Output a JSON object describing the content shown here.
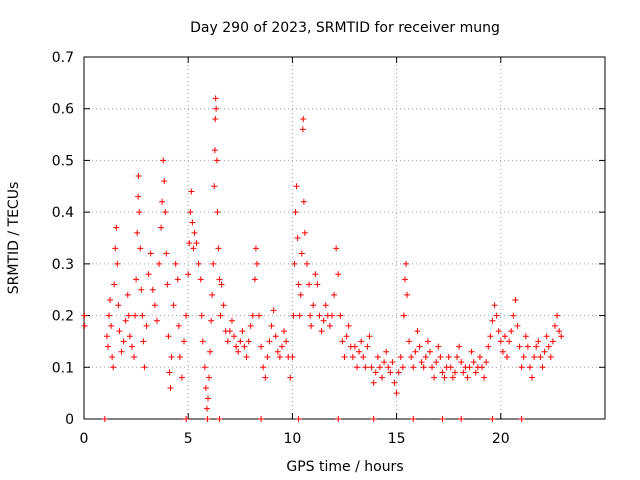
{
  "chart_data": {
    "type": "scatter",
    "title": "Day 290 of 2023, SRMTID for receiver mung",
    "xlabel": "GPS time / hours",
    "ylabel": "SRMTID / TECUs",
    "xlim": [
      0,
      25
    ],
    "ylim": [
      0,
      0.7
    ],
    "xticks": [
      0,
      5,
      10,
      15,
      20
    ],
    "yticks": [
      0,
      0.1,
      0.2,
      0.3,
      0.4,
      0.5,
      0.6,
      0.7
    ],
    "xtick_labels": [
      "0",
      "5",
      "10",
      "15",
      "20"
    ],
    "ytick_labels": [
      "0",
      "0.1",
      "0.2",
      "0.3",
      "0.4",
      "0.5",
      "0.6",
      "0.7"
    ],
    "grid": true,
    "marker": "+",
    "color": "#ff0000",
    "series": [
      {
        "name": "SRMTID",
        "points": [
          [
            0.02,
            0.2
          ],
          [
            0.03,
            0.18
          ],
          [
            1.0,
            0.0
          ],
          [
            1.1,
            0.16
          ],
          [
            1.15,
            0.14
          ],
          [
            1.2,
            0.2
          ],
          [
            1.25,
            0.23
          ],
          [
            1.3,
            0.18
          ],
          [
            1.35,
            0.12
          ],
          [
            1.4,
            0.1
          ],
          [
            1.45,
            0.26
          ],
          [
            1.5,
            0.33
          ],
          [
            1.55,
            0.37
          ],
          [
            1.6,
            0.3
          ],
          [
            1.65,
            0.22
          ],
          [
            1.7,
            0.17
          ],
          [
            1.8,
            0.13
          ],
          [
            1.9,
            0.15
          ],
          [
            2.0,
            0.19
          ],
          [
            2.1,
            0.24
          ],
          [
            2.15,
            0.2
          ],
          [
            2.2,
            0.16
          ],
          [
            2.3,
            0.14
          ],
          [
            2.4,
            0.12
          ],
          [
            2.45,
            0.2
          ],
          [
            2.5,
            0.27
          ],
          [
            2.55,
            0.36
          ],
          [
            2.6,
            0.43
          ],
          [
            2.62,
            0.47
          ],
          [
            2.65,
            0.4
          ],
          [
            2.7,
            0.33
          ],
          [
            2.75,
            0.25
          ],
          [
            2.8,
            0.2
          ],
          [
            2.85,
            0.15
          ],
          [
            2.9,
            0.1
          ],
          [
            3.0,
            0.18
          ],
          [
            3.1,
            0.28
          ],
          [
            3.2,
            0.32
          ],
          [
            3.3,
            0.25
          ],
          [
            3.4,
            0.22
          ],
          [
            3.5,
            0.19
          ],
          [
            3.6,
            0.3
          ],
          [
            3.7,
            0.37
          ],
          [
            3.75,
            0.42
          ],
          [
            3.8,
            0.5
          ],
          [
            3.85,
            0.46
          ],
          [
            3.9,
            0.4
          ],
          [
            3.95,
            0.32
          ],
          [
            4.0,
            0.26
          ],
          [
            4.05,
            0.16
          ],
          [
            4.1,
            0.09
          ],
          [
            4.15,
            0.06
          ],
          [
            4.2,
            0.12
          ],
          [
            4.3,
            0.22
          ],
          [
            4.4,
            0.3
          ],
          [
            4.5,
            0.27
          ],
          [
            4.55,
            0.18
          ],
          [
            4.6,
            0.12
          ],
          [
            4.7,
            0.08
          ],
          [
            4.8,
            0.15
          ],
          [
            4.9,
            0.2
          ],
          [
            5.0,
            0.28
          ],
          [
            5.05,
            0.34
          ],
          [
            5.1,
            0.4
          ],
          [
            5.15,
            0.44
          ],
          [
            5.2,
            0.38
          ],
          [
            5.25,
            0.33
          ],
          [
            5.3,
            0.36
          ],
          [
            5.4,
            0.34
          ],
          [
            5.5,
            0.3
          ],
          [
            5.6,
            0.27
          ],
          [
            5.65,
            0.2
          ],
          [
            5.7,
            0.15
          ],
          [
            5.8,
            0.1
          ],
          [
            5.85,
            0.06
          ],
          [
            5.9,
            0.02
          ],
          [
            5.92,
            0.0
          ],
          [
            5.95,
            0.04
          ],
          [
            6.0,
            0.08
          ],
          [
            6.05,
            0.13
          ],
          [
            6.1,
            0.19
          ],
          [
            6.15,
            0.24
          ],
          [
            6.2,
            0.3
          ],
          [
            6.25,
            0.45
          ],
          [
            6.28,
            0.52
          ],
          [
            6.3,
            0.58
          ],
          [
            6.32,
            0.62
          ],
          [
            6.34,
            0.6
          ],
          [
            6.38,
            0.5
          ],
          [
            6.4,
            0.4
          ],
          [
            6.45,
            0.33
          ],
          [
            6.5,
            0.27
          ],
          [
            6.55,
            0.2
          ],
          [
            6.6,
            0.26
          ],
          [
            6.7,
            0.22
          ],
          [
            6.8,
            0.17
          ],
          [
            6.9,
            0.15
          ],
          [
            7.0,
            0.17
          ],
          [
            7.1,
            0.19
          ],
          [
            7.2,
            0.16
          ],
          [
            7.3,
            0.14
          ],
          [
            7.4,
            0.13
          ],
          [
            7.5,
            0.15
          ],
          [
            7.6,
            0.17
          ],
          [
            7.7,
            0.14
          ],
          [
            7.8,
            0.12
          ],
          [
            7.9,
            0.15
          ],
          [
            8.0,
            0.18
          ],
          [
            8.1,
            0.2
          ],
          [
            8.2,
            0.27
          ],
          [
            8.25,
            0.33
          ],
          [
            8.3,
            0.3
          ],
          [
            8.4,
            0.2
          ],
          [
            8.5,
            0.14
          ],
          [
            8.6,
            0.1
          ],
          [
            8.7,
            0.08
          ],
          [
            8.8,
            0.12
          ],
          [
            8.9,
            0.15
          ],
          [
            9.0,
            0.18
          ],
          [
            9.1,
            0.21
          ],
          [
            9.2,
            0.16
          ],
          [
            9.3,
            0.13
          ],
          [
            9.4,
            0.12
          ],
          [
            9.5,
            0.14
          ],
          [
            9.6,
            0.17
          ],
          [
            9.7,
            0.15
          ],
          [
            9.8,
            0.12
          ],
          [
            9.9,
            0.08
          ],
          [
            10.0,
            0.12
          ],
          [
            10.05,
            0.2
          ],
          [
            10.1,
            0.3
          ],
          [
            10.15,
            0.4
          ],
          [
            10.2,
            0.45
          ],
          [
            10.25,
            0.35
          ],
          [
            10.3,
            0.26
          ],
          [
            10.35,
            0.2
          ],
          [
            10.4,
            0.24
          ],
          [
            10.45,
            0.32
          ],
          [
            10.5,
            0.56
          ],
          [
            10.52,
            0.58
          ],
          [
            10.55,
            0.42
          ],
          [
            10.6,
            0.36
          ],
          [
            10.7,
            0.3
          ],
          [
            10.8,
            0.26
          ],
          [
            10.85,
            0.2
          ],
          [
            10.9,
            0.18
          ],
          [
            11.0,
            0.22
          ],
          [
            11.1,
            0.28
          ],
          [
            11.2,
            0.26
          ],
          [
            11.3,
            0.2
          ],
          [
            11.4,
            0.17
          ],
          [
            11.5,
            0.19
          ],
          [
            11.6,
            0.22
          ],
          [
            11.7,
            0.2
          ],
          [
            11.8,
            0.18
          ],
          [
            11.9,
            0.2
          ],
          [
            12.0,
            0.24
          ],
          [
            12.1,
            0.33
          ],
          [
            12.2,
            0.28
          ],
          [
            12.3,
            0.2
          ],
          [
            12.4,
            0.15
          ],
          [
            12.5,
            0.12
          ],
          [
            12.6,
            0.16
          ],
          [
            12.7,
            0.18
          ],
          [
            12.8,
            0.14
          ],
          [
            12.9,
            0.12
          ],
          [
            13.0,
            0.14
          ],
          [
            13.1,
            0.1
          ],
          [
            13.2,
            0.13
          ],
          [
            13.3,
            0.15
          ],
          [
            13.4,
            0.12
          ],
          [
            13.5,
            0.1
          ],
          [
            13.6,
            0.14
          ],
          [
            13.7,
            0.16
          ],
          [
            13.8,
            0.1
          ],
          [
            13.9,
            0.07
          ],
          [
            14.0,
            0.09
          ],
          [
            14.1,
            0.12
          ],
          [
            14.2,
            0.1
          ],
          [
            14.3,
            0.08
          ],
          [
            14.4,
            0.11
          ],
          [
            14.5,
            0.13
          ],
          [
            14.6,
            0.1
          ],
          [
            14.7,
            0.09
          ],
          [
            14.8,
            0.11
          ],
          [
            14.9,
            0.07
          ],
          [
            15.0,
            0.05
          ],
          [
            15.1,
            0.09
          ],
          [
            15.2,
            0.12
          ],
          [
            15.3,
            0.1
          ],
          [
            15.35,
            0.2
          ],
          [
            15.4,
            0.27
          ],
          [
            15.45,
            0.3
          ],
          [
            15.5,
            0.24
          ],
          [
            15.6,
            0.15
          ],
          [
            15.7,
            0.12
          ],
          [
            15.8,
            0.1
          ],
          [
            15.9,
            0.13
          ],
          [
            16.0,
            0.17
          ],
          [
            16.1,
            0.14
          ],
          [
            16.2,
            0.11
          ],
          [
            16.3,
            0.1
          ],
          [
            16.4,
            0.12
          ],
          [
            16.5,
            0.15
          ],
          [
            16.6,
            0.13
          ],
          [
            16.7,
            0.1
          ],
          [
            16.8,
            0.08
          ],
          [
            16.9,
            0.11
          ],
          [
            17.0,
            0.14
          ],
          [
            17.1,
            0.12
          ],
          [
            17.2,
            0.09
          ],
          [
            17.3,
            0.08
          ],
          [
            17.4,
            0.1
          ],
          [
            17.5,
            0.12
          ],
          [
            17.6,
            0.1
          ],
          [
            17.7,
            0.08
          ],
          [
            17.8,
            0.09
          ],
          [
            17.9,
            0.12
          ],
          [
            18.0,
            0.14
          ],
          [
            18.1,
            0.11
          ],
          [
            18.2,
            0.09
          ],
          [
            18.3,
            0.1
          ],
          [
            18.4,
            0.08
          ],
          [
            18.5,
            0.1
          ],
          [
            18.6,
            0.13
          ],
          [
            18.7,
            0.11
          ],
          [
            18.8,
            0.09
          ],
          [
            18.9,
            0.1
          ],
          [
            19.0,
            0.12
          ],
          [
            19.1,
            0.1
          ],
          [
            19.2,
            0.08
          ],
          [
            19.3,
            0.11
          ],
          [
            19.4,
            0.14
          ],
          [
            19.5,
            0.16
          ],
          [
            19.6,
            0.19
          ],
          [
            19.7,
            0.22
          ],
          [
            19.8,
            0.2
          ],
          [
            19.9,
            0.17
          ],
          [
            20.0,
            0.15
          ],
          [
            20.1,
            0.13
          ],
          [
            20.2,
            0.16
          ],
          [
            20.3,
            0.12
          ],
          [
            20.4,
            0.15
          ],
          [
            20.5,
            0.17
          ],
          [
            20.6,
            0.2
          ],
          [
            20.7,
            0.23
          ],
          [
            20.8,
            0.18
          ],
          [
            20.9,
            0.14
          ],
          [
            21.0,
            0.1
          ],
          [
            21.1,
            0.12
          ],
          [
            21.2,
            0.16
          ],
          [
            21.3,
            0.14
          ],
          [
            21.4,
            0.1
          ],
          [
            21.5,
            0.08
          ],
          [
            21.6,
            0.12
          ],
          [
            21.7,
            0.14
          ],
          [
            21.8,
            0.15
          ],
          [
            21.9,
            0.12
          ],
          [
            22.0,
            0.1
          ],
          [
            22.1,
            0.13
          ],
          [
            22.2,
            0.16
          ],
          [
            22.3,
            0.14
          ],
          [
            22.4,
            0.12
          ],
          [
            22.5,
            0.15
          ],
          [
            22.6,
            0.18
          ],
          [
            22.7,
            0.2
          ],
          [
            22.8,
            0.17
          ],
          [
            22.9,
            0.16
          ],
          [
            4.9,
            0.0
          ],
          [
            6.5,
            0.0
          ],
          [
            8.5,
            0.0
          ],
          [
            10.3,
            0.0
          ],
          [
            12.2,
            0.0
          ],
          [
            13.9,
            0.0
          ],
          [
            15.8,
            0.0
          ],
          [
            17.2,
            0.0
          ],
          [
            18.1,
            0.0
          ],
          [
            19.6,
            0.0
          ],
          [
            21.0,
            0.0
          ]
        ]
      }
    ]
  }
}
